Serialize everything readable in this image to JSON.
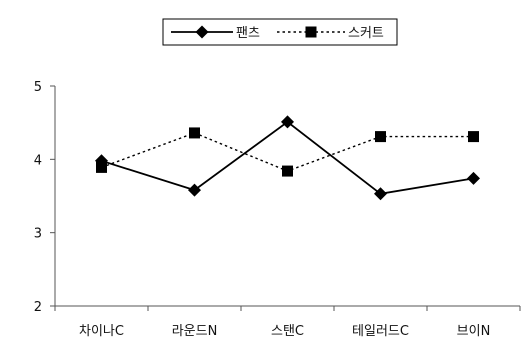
{
  "chart_data": {
    "type": "line",
    "categories": [
      "차이나C",
      "라운드N",
      "스탠C",
      "테일러드C",
      "브이N"
    ],
    "series": [
      {
        "name": "팬츠",
        "values": [
          3.98,
          3.58,
          4.51,
          3.53,
          3.74
        ],
        "marker": "diamond",
        "line": "solid",
        "color": "#000000"
      },
      {
        "name": "스커트",
        "values": [
          3.89,
          4.36,
          3.84,
          4.31,
          4.31
        ],
        "marker": "square",
        "line": "dotted",
        "color": "#000000"
      }
    ],
    "ylim": [
      2,
      5
    ],
    "yticks": [
      2,
      3,
      4,
      5
    ],
    "grid": false,
    "legend_position": "top-center"
  }
}
